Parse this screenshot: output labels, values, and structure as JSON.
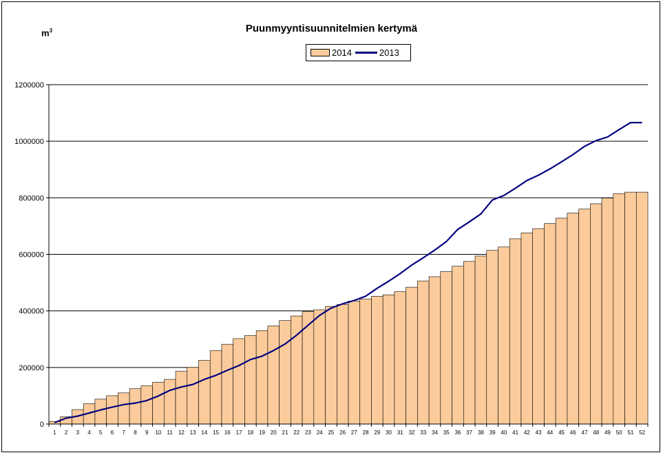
{
  "chart_data": {
    "type": "bar",
    "title": "Puunmyyntisuunnitelmien kertymä",
    "unit_label": "m",
    "unit_superscript": "3",
    "xlabel": "",
    "ylabel": "",
    "ylim": [
      0,
      1200000
    ],
    "yticks": [
      "0",
      "200000",
      "400000",
      "600000",
      "800000",
      "1000000",
      "1200000"
    ],
    "ytick_values": [
      0,
      200000,
      400000,
      600000,
      800000,
      1000000,
      1200000
    ],
    "grid": true,
    "legend_position": "top-center",
    "categories": [
      "1",
      "2",
      "3",
      "4",
      "5",
      "6",
      "7",
      "8",
      "9",
      "10",
      "11",
      "12",
      "13",
      "14",
      "15",
      "16",
      "17",
      "18",
      "19",
      "20",
      "21",
      "22",
      "23",
      "24",
      "25",
      "26",
      "27",
      "28",
      "29",
      "30",
      "31",
      "32",
      "33",
      "34",
      "35",
      "36",
      "37",
      "38",
      "39",
      "40",
      "41",
      "42",
      "43",
      "44",
      "45",
      "46",
      "47",
      "48",
      "49",
      "50",
      "51",
      "52"
    ],
    "series": [
      {
        "name": "2014",
        "kind": "bar",
        "color": "#FBCB9B",
        "values": [
          9000,
          26000,
          51000,
          72000,
          88000,
          100000,
          110000,
          125000,
          135000,
          148000,
          158000,
          187000,
          201000,
          225000,
          260000,
          282000,
          302000,
          313000,
          330000,
          347000,
          366000,
          382000,
          398000,
          404000,
          416000,
          423000,
          435000,
          442000,
          452000,
          457000,
          468000,
          484000,
          506000,
          521000,
          539000,
          558000,
          575000,
          594000,
          614000,
          626000,
          655000,
          676000,
          691000,
          709000,
          728000,
          746000,
          760000,
          779000,
          799000,
          815000,
          820000,
          820000
        ]
      },
      {
        "name": "2013",
        "kind": "line",
        "color": "#000080",
        "values": [
          5000,
          21000,
          28000,
          39000,
          50000,
          60000,
          69000,
          74000,
          83000,
          99000,
          119000,
          131000,
          140000,
          158000,
          172000,
          190000,
          207000,
          228000,
          240000,
          260000,
          283000,
          314000,
          349000,
          384000,
          410000,
          425000,
          437000,
          452000,
          480000,
          505000,
          532000,
          562000,
          588000,
          615000,
          645000,
          688000,
          715000,
          743000,
          792000,
          808000,
          834000,
          861000,
          880000,
          902000,
          927000,
          953000,
          982000,
          1002000,
          1015000,
          1041000,
          1066000,
          1066000
        ]
      }
    ]
  }
}
